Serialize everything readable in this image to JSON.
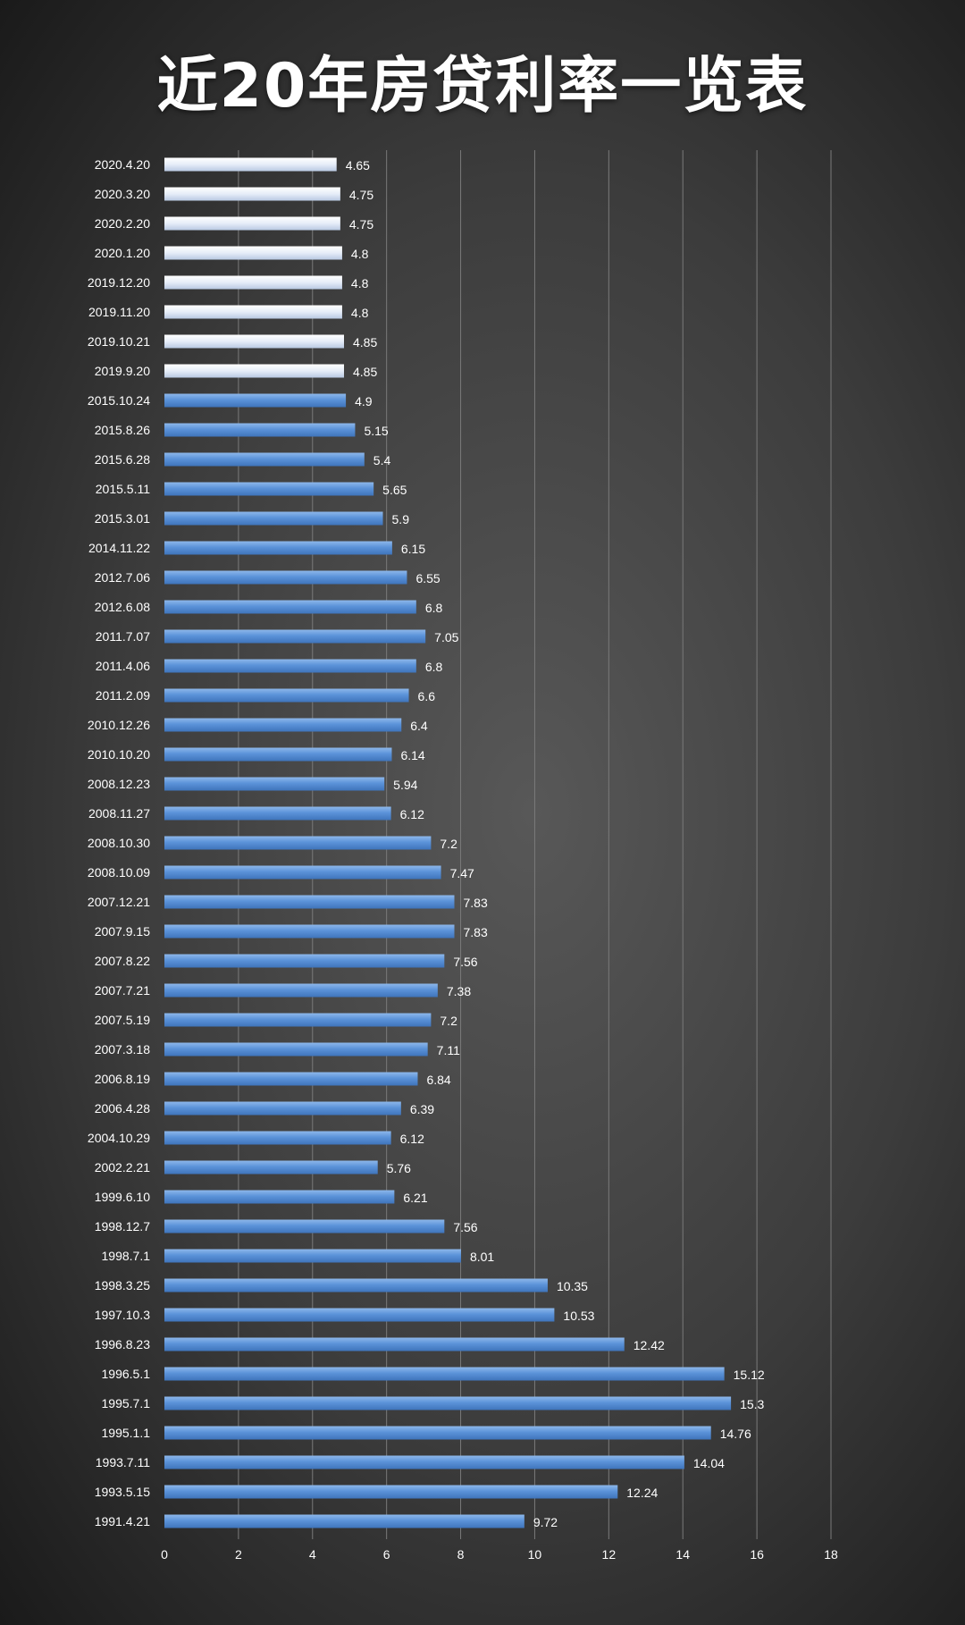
{
  "chart_data": {
    "type": "bar",
    "orientation": "horizontal",
    "title": "近20年房贷利率一览表",
    "xlim": [
      0,
      18
    ],
    "xticks": [
      0,
      2,
      4,
      6,
      8,
      10,
      12,
      14,
      16,
      18
    ],
    "grid": true,
    "legend": "none",
    "colors": {
      "recent_bar": "#e8eef8",
      "bar": "#5b93d9"
    },
    "highlight_count": 8,
    "categories": [
      "2020.4.20",
      "2020.3.20",
      "2020.2.20",
      "2020.1.20",
      "2019.12.20",
      "2019.11.20",
      "2019.10.21",
      "2019.9.20",
      "2015.10.24",
      "2015.8.26",
      "2015.6.28",
      "2015.5.11",
      "2015.3.01",
      "2014.11.22",
      "2012.7.06",
      "2012.6.08",
      "2011.7.07",
      "2011.4.06",
      "2011.2.09",
      "2010.12.26",
      "2010.10.20",
      "2008.12.23",
      "2008.11.27",
      "2008.10.30",
      "2008.10.09",
      "2007.12.21",
      "2007.9.15",
      "2007.8.22",
      "2007.7.21",
      "2007.5.19",
      "2007.3.18",
      "2006.8.19",
      "2006.4.28",
      "2004.10.29",
      "2002.2.21",
      "1999.6.10",
      "1998.12.7",
      "1998.7.1",
      "1998.3.25",
      "1997.10.3",
      "1996.8.23",
      "1996.5.1",
      "1995.7.1",
      "1995.1.1",
      "1993.7.11",
      "1993.5.15",
      "1991.4.21"
    ],
    "values": [
      4.65,
      4.75,
      4.75,
      4.8,
      4.8,
      4.8,
      4.85,
      4.85,
      4.9,
      5.15,
      5.4,
      5.65,
      5.9,
      6.15,
      6.55,
      6.8,
      7.05,
      6.8,
      6.6,
      6.4,
      6.14,
      5.94,
      6.12,
      7.2,
      7.47,
      7.83,
      7.83,
      7.56,
      7.38,
      7.2,
      7.11,
      6.84,
      6.39,
      6.12,
      5.76,
      6.21,
      7.56,
      8.01,
      10.35,
      10.53,
      12.42,
      15.12,
      15.3,
      14.76,
      14.04,
      12.24,
      9.72
    ]
  }
}
